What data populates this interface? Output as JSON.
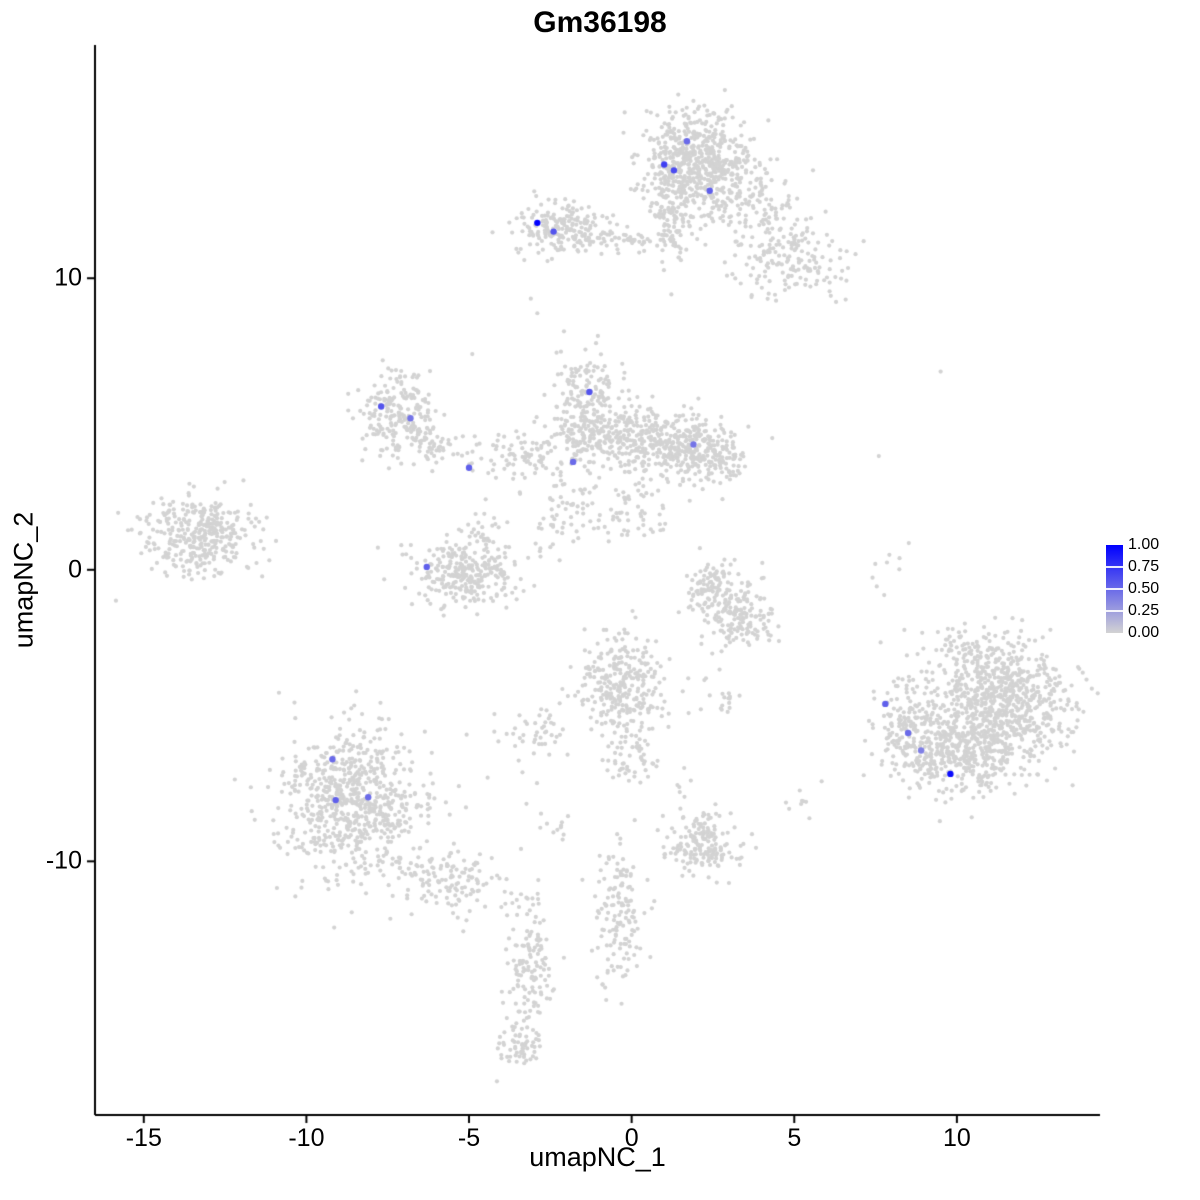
{
  "chart_data": {
    "type": "scatter",
    "title": "Gm36198",
    "xlabel": "umapNC_1",
    "ylabel": "umapNC_2",
    "xlim": [
      -16.5,
      14.4
    ],
    "ylim": [
      -18.7,
      18.0
    ],
    "x_ticks": [
      -15,
      -10,
      -5,
      0,
      5,
      10
    ],
    "x_tick_labels": [
      "-15",
      "-10",
      "-5",
      "0",
      "5",
      "10"
    ],
    "y_ticks": [
      10,
      0,
      -10
    ],
    "y_tick_labels": [
      "10",
      "0",
      "-10"
    ],
    "legend": {
      "tick_labels": [
        "1.00",
        "0.75",
        "0.50",
        "0.25",
        "0.00"
      ],
      "color_high": "#0000FF",
      "color_low": "#D3D3D3"
    },
    "style": {
      "background_point_color": "#D3D3D3",
      "point_radius": 2.1,
      "highlight_radius": 3.2,
      "axis_color": "#000000"
    },
    "seed": 42,
    "background_clusters": [
      {
        "cx": 1.9,
        "cy": 14.0,
        "sx": 0.85,
        "sy": 0.85,
        "n": 620
      },
      {
        "cx": 1.25,
        "cy": 11.8,
        "sx": 0.3,
        "sy": 0.75,
        "n": 90
      },
      {
        "cx": 3.6,
        "cy": 12.7,
        "sx": 0.75,
        "sy": 0.65,
        "n": 110
      },
      {
        "cx": 4.9,
        "cy": 10.7,
        "sx": 0.85,
        "sy": 0.75,
        "n": 180
      },
      {
        "cx": -2.2,
        "cy": 11.7,
        "sx": 0.7,
        "sy": 0.45,
        "n": 200
      },
      {
        "cx": -0.2,
        "cy": 11.3,
        "sx": 0.8,
        "sy": 0.2,
        "n": 60
      },
      {
        "cx": -7.2,
        "cy": 5.4,
        "sx": 0.55,
        "sy": 0.75,
        "n": 210
      },
      {
        "cx": -6.1,
        "cy": 4.3,
        "sx": 0.5,
        "sy": 0.4,
        "n": 50
      },
      {
        "cx": -1.4,
        "cy": 5.8,
        "sx": 0.5,
        "sy": 0.8,
        "n": 190
      },
      {
        "cx": -0.2,
        "cy": 4.5,
        "sx": 1.1,
        "sy": 0.5,
        "n": 300
      },
      {
        "cx": 1.6,
        "cy": 4.2,
        "sx": 0.8,
        "sy": 0.55,
        "n": 260
      },
      {
        "cx": 2.7,
        "cy": 3.7,
        "sx": 0.5,
        "sy": 0.4,
        "n": 60
      },
      {
        "cx": -3.4,
        "cy": 4.0,
        "sx": 1.0,
        "sy": 0.35,
        "n": 90
      },
      {
        "cx": -1.8,
        "cy": 2.0,
        "sx": 0.8,
        "sy": 0.7,
        "n": 80
      },
      {
        "cx": 0.1,
        "cy": 1.9,
        "sx": 0.6,
        "sy": 0.6,
        "n": 50
      },
      {
        "cx": -5.1,
        "cy": -0.1,
        "sx": 0.8,
        "sy": 0.55,
        "n": 290
      },
      {
        "cx": -4.6,
        "cy": 1.2,
        "sx": 0.3,
        "sy": 0.5,
        "n": 25
      },
      {
        "cx": -13.3,
        "cy": 1.2,
        "sx": 0.85,
        "sy": 0.7,
        "n": 360
      },
      {
        "cx": 2.6,
        "cy": -0.8,
        "sx": 0.5,
        "sy": 0.5,
        "n": 120
      },
      {
        "cx": 3.3,
        "cy": -1.6,
        "sx": 0.5,
        "sy": 0.55,
        "n": 140
      },
      {
        "cx": -0.3,
        "cy": -3.9,
        "sx": 0.75,
        "sy": 0.85,
        "n": 290
      },
      {
        "cx": 0.0,
        "cy": -6.4,
        "sx": 0.4,
        "sy": 0.7,
        "n": 60
      },
      {
        "cx": 2.8,
        "cy": -4.6,
        "sx": 0.3,
        "sy": 0.25,
        "n": 15
      },
      {
        "cx": 11.4,
        "cy": -4.5,
        "sx": 1.05,
        "sy": 1.0,
        "n": 720
      },
      {
        "cx": 10.1,
        "cy": -6.2,
        "sx": 1.0,
        "sy": 0.8,
        "n": 420
      },
      {
        "cx": 8.4,
        "cy": -5.4,
        "sx": 0.5,
        "sy": 0.9,
        "n": 130
      },
      {
        "cx": 10.6,
        "cy": -2.8,
        "sx": 0.9,
        "sy": 0.45,
        "n": 70
      },
      {
        "cx": 7.9,
        "cy": 0.0,
        "sx": 0.3,
        "sy": 0.7,
        "n": 9
      },
      {
        "cx": -8.6,
        "cy": -8.0,
        "sx": 1.05,
        "sy": 1.25,
        "n": 720
      },
      {
        "cx": -5.7,
        "cy": -10.5,
        "sx": 0.8,
        "sy": 0.6,
        "n": 140
      },
      {
        "cx": -3.2,
        "cy": -13.9,
        "sx": 0.35,
        "sy": 1.4,
        "n": 150
      },
      {
        "cx": -3.5,
        "cy": -16.4,
        "sx": 0.35,
        "sy": 0.35,
        "n": 45
      },
      {
        "cx": -0.4,
        "cy": -12.0,
        "sx": 0.4,
        "sy": 1.2,
        "n": 140
      },
      {
        "cx": 2.2,
        "cy": -9.4,
        "sx": 0.6,
        "sy": 0.5,
        "n": 170
      },
      {
        "cx": -3.1,
        "cy": -5.8,
        "sx": 0.7,
        "sy": 0.5,
        "n": 45
      },
      {
        "cx": -2.4,
        "cy": -8.8,
        "sx": 0.4,
        "sy": 0.4,
        "n": 12
      },
      {
        "cx": 5.1,
        "cy": -7.8,
        "sx": 0.4,
        "sy": 0.4,
        "n": 9
      },
      {
        "cx": 1.6,
        "cy": -7.2,
        "sx": 0.3,
        "sy": 0.3,
        "n": 6
      }
    ],
    "background_singles": [
      [
        9.5,
        6.8
      ],
      [
        7.6,
        3.9
      ],
      [
        -3.1,
        9.3
      ],
      [
        -2.9,
        8.8
      ],
      [
        -4.9,
        7.4
      ]
    ],
    "expressing_cells": [
      {
        "x": 1.7,
        "y": 14.7,
        "value": 0.5
      },
      {
        "x": 1.0,
        "y": 13.9,
        "value": 0.7
      },
      {
        "x": 1.3,
        "y": 13.7,
        "value": 0.65
      },
      {
        "x": 2.4,
        "y": 13.0,
        "value": 0.55
      },
      {
        "x": -2.9,
        "y": 11.9,
        "value": 1.0
      },
      {
        "x": -2.4,
        "y": 11.6,
        "value": 0.6
      },
      {
        "x": -7.7,
        "y": 5.6,
        "value": 0.6
      },
      {
        "x": -6.8,
        "y": 5.2,
        "value": 0.45
      },
      {
        "x": -1.3,
        "y": 6.1,
        "value": 0.6
      },
      {
        "x": -5.0,
        "y": 3.5,
        "value": 0.55
      },
      {
        "x": -1.8,
        "y": 3.7,
        "value": 0.5
      },
      {
        "x": 1.9,
        "y": 4.3,
        "value": 0.45
      },
      {
        "x": -6.3,
        "y": 0.1,
        "value": 0.55
      },
      {
        "x": -9.2,
        "y": -6.5,
        "value": 0.5
      },
      {
        "x": -9.1,
        "y": -7.9,
        "value": 0.55
      },
      {
        "x": -8.1,
        "y": -7.8,
        "value": 0.5
      },
      {
        "x": 7.8,
        "y": -4.6,
        "value": 0.55
      },
      {
        "x": 8.5,
        "y": -5.6,
        "value": 0.5
      },
      {
        "x": 8.9,
        "y": -6.2,
        "value": 0.4
      },
      {
        "x": 9.8,
        "y": -7.0,
        "value": 0.95
      }
    ]
  }
}
